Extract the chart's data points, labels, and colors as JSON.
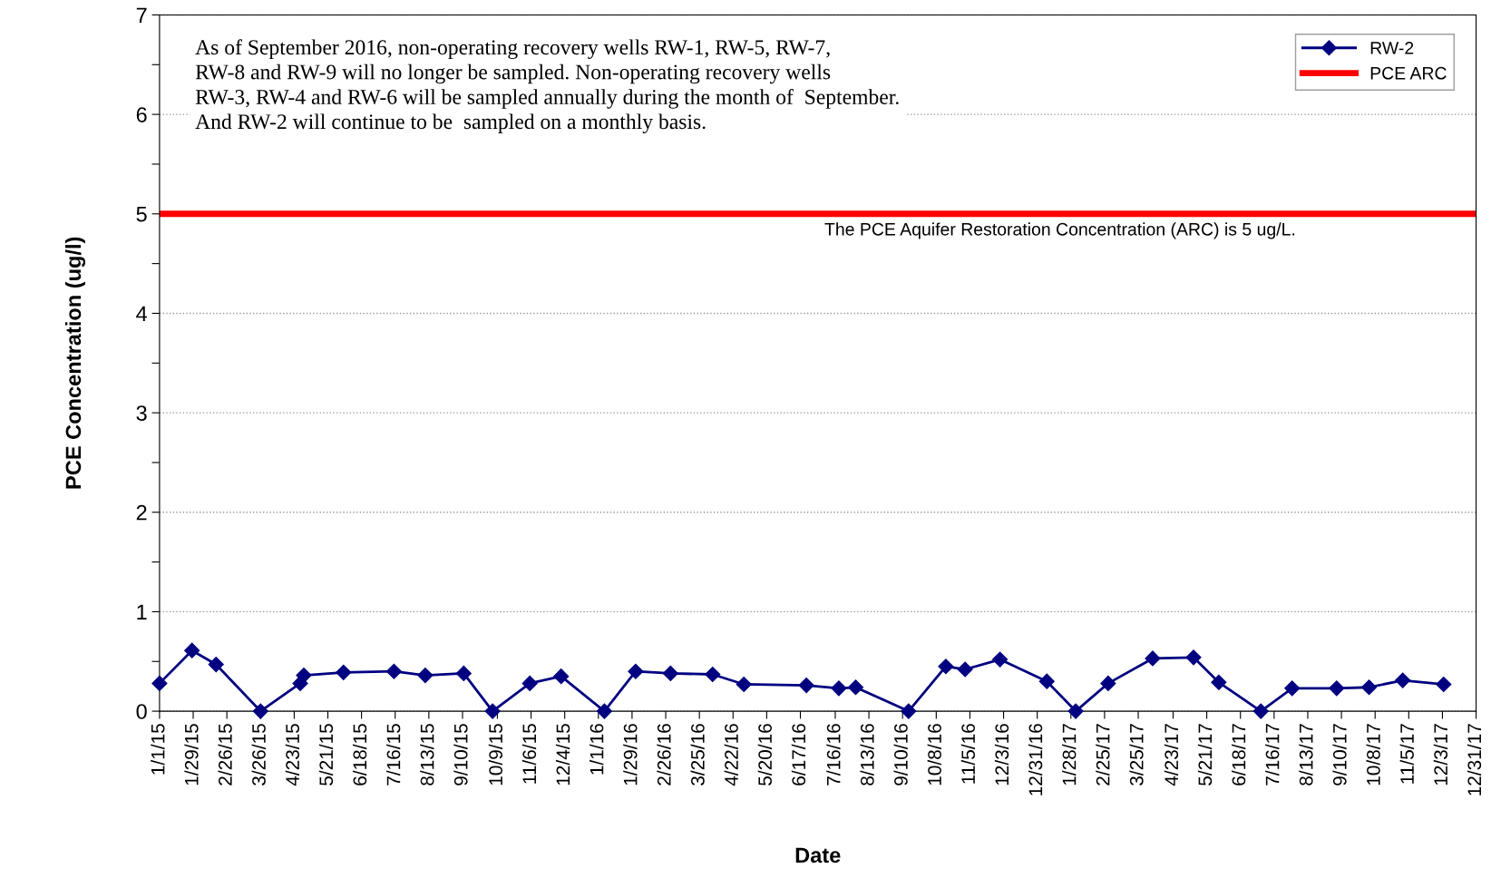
{
  "chart_data": {
    "type": "line",
    "xlabel": "Date",
    "ylabel": "PCE Concentration (ug/l)",
    "x": [
      "2015-01-01",
      "2015-01-28",
      "2015-02-17",
      "2015-03-26",
      "2015-04-28",
      "2015-05-01",
      "2015-06-03",
      "2015-07-15",
      "2015-08-10",
      "2015-09-11",
      "2015-10-05",
      "2015-11-05",
      "2015-12-01",
      "2016-01-06",
      "2016-02-01",
      "2016-03-01",
      "2016-04-05",
      "2016-05-01",
      "2016-06-22",
      "2016-07-19",
      "2016-08-02",
      "2016-09-15",
      "2016-10-16",
      "2016-11-01",
      "2016-11-30",
      "2017-01-08",
      "2017-02-01",
      "2017-02-28",
      "2017-04-06",
      "2017-05-10",
      "2017-05-31",
      "2017-07-05",
      "2017-07-31",
      "2017-09-06",
      "2017-10-03",
      "2017-10-31",
      "2017-12-04"
    ],
    "series": [
      {
        "name": "RW-2",
        "color": "#000080",
        "values": [
          0.28,
          0.61,
          0.47,
          0,
          0.28,
          0.36,
          0.39,
          0.4,
          0.36,
          0.38,
          0,
          0.28,
          0.35,
          0,
          0.4,
          0.38,
          0.37,
          0.27,
          0.26,
          0.23,
          0.24,
          0,
          0.45,
          0.42,
          0.52,
          0.3,
          0,
          0.28,
          0.53,
          0.54,
          0.29,
          0,
          0.23,
          0.23,
          0.24,
          0.31,
          0.27
        ]
      }
    ],
    "marker": "diamond",
    "line_style": "solid",
    "ref_lines": [
      {
        "axis": "y",
        "value": 5,
        "label": "PCE ARC",
        "color": "#ff0000"
      }
    ],
    "annotations": [
      "As of September 2016, non-operating recovery wells RW-1, RW-5, RW-7,\nRW-8 and RW-9 will no longer be sampled. Non-operating recovery wells\nRW-3, RW-4 and RW-6 will be sampled annually during the month of  September.\nAnd RW-2 will continue to be  sampled on a monthly basis.",
      "The PCE Aquifer Restoration Concentration (ARC) is 5 ug/L."
    ],
    "xlim": [
      "2015-01-01",
      "2017-12-31"
    ],
    "xticks": [
      {
        "value": "2015-01-01",
        "label": "1/1/15"
      },
      {
        "value": "2015-01-29",
        "label": "1/29/15"
      },
      {
        "value": "2015-02-26",
        "label": "2/26/15"
      },
      {
        "value": "2015-03-26",
        "label": "3/26/15"
      },
      {
        "value": "2015-04-23",
        "label": "4/23/15"
      },
      {
        "value": "2015-05-21",
        "label": "5/21/15"
      },
      {
        "value": "2015-06-18",
        "label": "6/18/15"
      },
      {
        "value": "2015-07-16",
        "label": "7/16/15"
      },
      {
        "value": "2015-08-13",
        "label": "8/13/15"
      },
      {
        "value": "2015-09-10",
        "label": "9/10/15"
      },
      {
        "value": "2015-10-09",
        "label": "10/9/15"
      },
      {
        "value": "2015-11-06",
        "label": "11/6/15"
      },
      {
        "value": "2015-12-04",
        "label": "12/4/15"
      },
      {
        "value": "2016-01-01",
        "label": "1/1/16"
      },
      {
        "value": "2016-01-29",
        "label": "1/29/16"
      },
      {
        "value": "2016-02-26",
        "label": "2/26/16"
      },
      {
        "value": "2016-03-25",
        "label": "3/25/16"
      },
      {
        "value": "2016-04-22",
        "label": "4/22/16"
      },
      {
        "value": "2016-05-20",
        "label": "5/20/16"
      },
      {
        "value": "2016-06-17",
        "label": "6/17/16"
      },
      {
        "value": "2016-07-16",
        "label": "7/16/16"
      },
      {
        "value": "2016-08-13",
        "label": "8/13/16"
      },
      {
        "value": "2016-09-10",
        "label": "9/10/16"
      },
      {
        "value": "2016-10-08",
        "label": "10/8/16"
      },
      {
        "value": "2016-11-05",
        "label": "11/5/16"
      },
      {
        "value": "2016-12-03",
        "label": "12/3/16"
      },
      {
        "value": "2016-12-31",
        "label": "12/31/16"
      },
      {
        "value": "2017-01-28",
        "label": "1/28/17"
      },
      {
        "value": "2017-02-25",
        "label": "2/25/17"
      },
      {
        "value": "2017-03-25",
        "label": "3/25/17"
      },
      {
        "value": "2017-04-23",
        "label": "4/23/17"
      },
      {
        "value": "2017-05-21",
        "label": "5/21/17"
      },
      {
        "value": "2017-06-18",
        "label": "6/18/17"
      },
      {
        "value": "2017-07-16",
        "label": "7/16/17"
      },
      {
        "value": "2017-08-13",
        "label": "8/13/17"
      },
      {
        "value": "2017-09-10",
        "label": "9/10/17"
      },
      {
        "value": "2017-10-08",
        "label": "10/8/17"
      },
      {
        "value": "2017-11-05",
        "label": "11/5/17"
      },
      {
        "value": "2017-12-03",
        "label": "12/3/17"
      },
      {
        "value": "2017-12-31",
        "label": "12/31/17"
      }
    ],
    "ylim": [
      0,
      7
    ],
    "yticks": [
      0,
      {
        "value": 0.5,
        "label": null
      },
      1,
      {
        "value": 1.5,
        "label": null
      },
      2,
      {
        "value": 2.5,
        "label": null
      },
      3,
      {
        "value": 3.5,
        "label": null
      },
      4,
      {
        "value": 4.5,
        "label": null
      },
      5,
      {
        "value": 5.5,
        "label": null
      },
      6,
      {
        "value": 6.5,
        "label": null
      },
      7
    ],
    "grid": "y",
    "legend": "top right"
  }
}
